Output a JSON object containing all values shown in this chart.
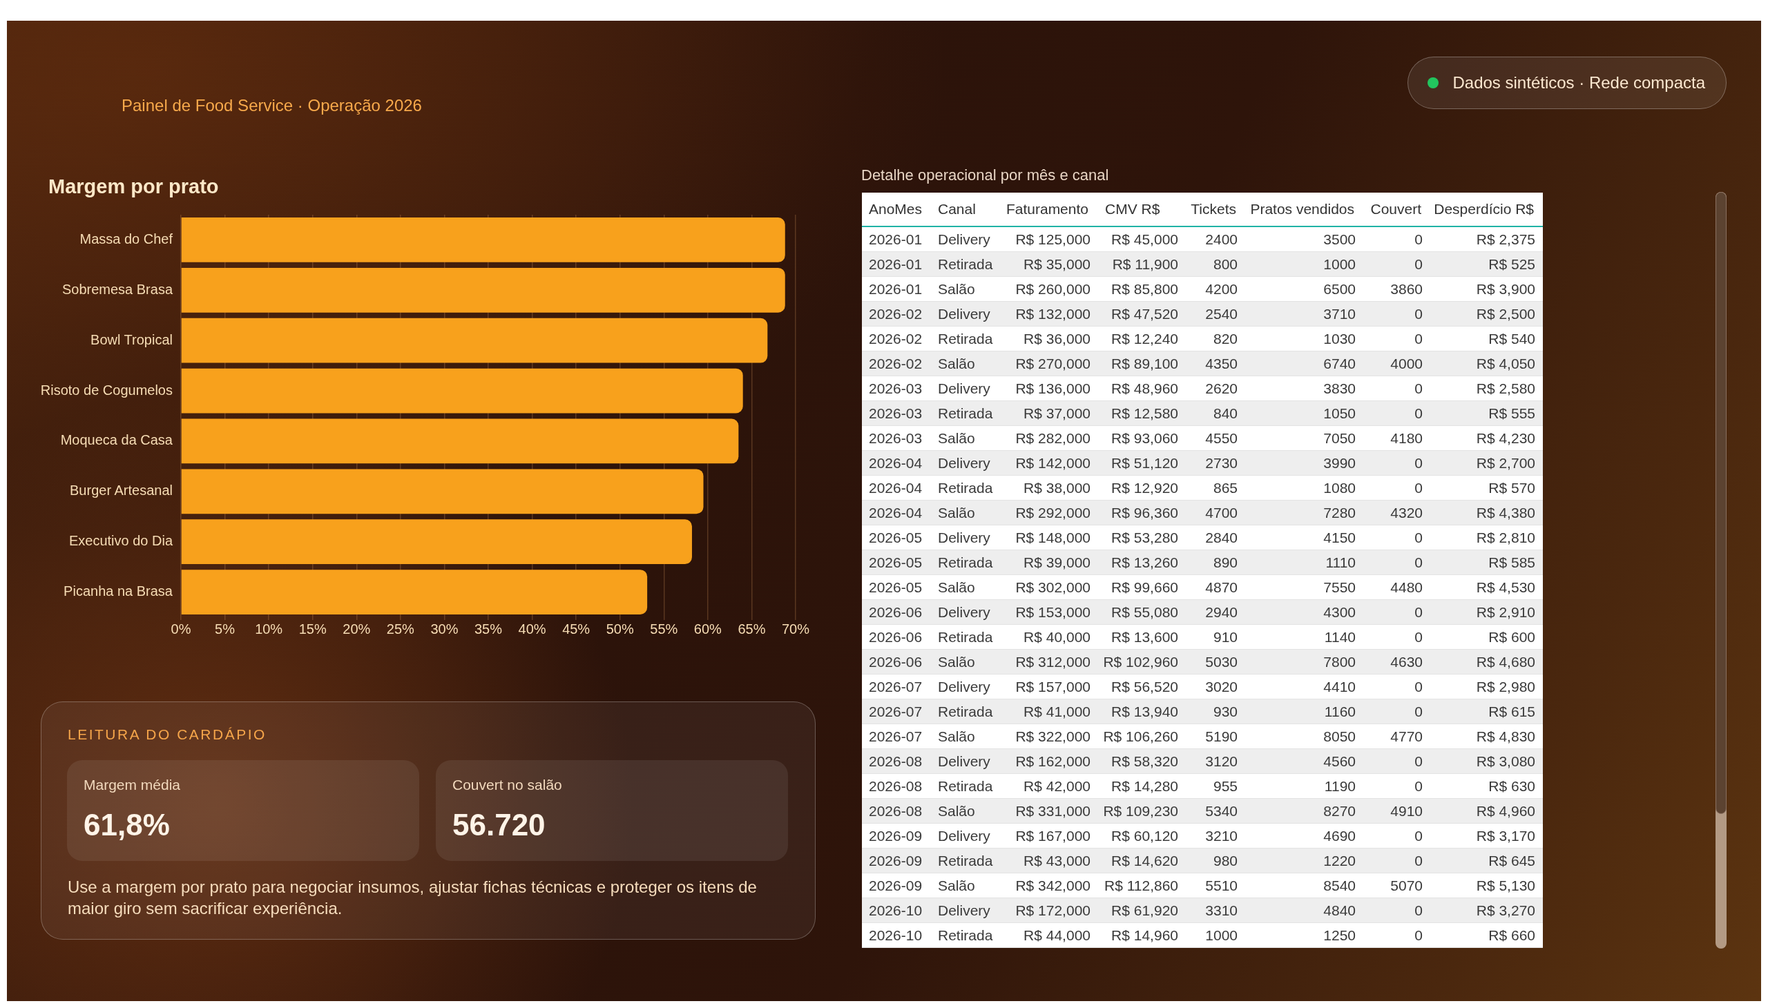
{
  "chart_data": [
    {
      "type": "other",
      "subtitle": "Painel de Food Service · Operação 2026",
      "annotations": [
        "Dados sintéticos · Rede compacta"
      ]
    },
    {
      "type": "bar",
      "orientation": "horizontal",
      "title": "Margem por prato",
      "categories": [
        "Massa do Chef",
        "Sobremesa Brasa",
        "Bowl Tropical",
        "Risoto de Cogumelos",
        "Moqueca da Casa",
        "Burger Artesanal",
        "Executivo do Dia",
        "Picanha na Brasa"
      ],
      "values": [
        68.8,
        68.8,
        66.8,
        64.0,
        63.5,
        59.5,
        58.2,
        53.1
      ],
      "color": "#f8a11c",
      "xlim": [
        0,
        70
      ],
      "xticks": [
        {
          "value": 0,
          "label": "0%"
        },
        {
          "value": 5,
          "label": "5%"
        },
        {
          "value": 10,
          "label": "10%"
        },
        {
          "value": 15,
          "label": "15%"
        },
        {
          "value": 20,
          "label": "20%"
        },
        {
          "value": 25,
          "label": "25%"
        },
        {
          "value": 30,
          "label": "30%"
        },
        {
          "value": 35,
          "label": "35%"
        },
        {
          "value": 40,
          "label": "40%"
        },
        {
          "value": 45,
          "label": "45%"
        },
        {
          "value": 50,
          "label": "50%"
        },
        {
          "value": 55,
          "label": "55%"
        },
        {
          "value": 60,
          "label": "60%"
        },
        {
          "value": 65,
          "label": "65%"
        },
        {
          "value": 70,
          "label": "70%"
        }
      ],
      "grid": "x"
    },
    {
      "type": "other",
      "title": "Detalhe operacional por mês e canal",
      "categories": [
        "AnoMes",
        "Canal",
        "Faturamento",
        "CMV R$",
        "Tickets",
        "Pratos vendidos",
        "Couvert",
        "Desperdício R$"
      ],
      "annotations": [
        "2026-01",
        "Delivery",
        "R$ 125,000",
        "R$ 45,000",
        "2400",
        "3500",
        "0",
        "R$ 2,375",
        "2026-01",
        "Retirada",
        "R$ 35,000",
        "R$ 11,900",
        "800",
        "1000",
        "0",
        "R$ 525",
        "2026-01",
        "Salão",
        "R$ 260,000",
        "R$ 85,800",
        "4200",
        "6500",
        "3860",
        "R$ 3,900",
        "2026-02",
        "Delivery",
        "R$ 132,000",
        "R$ 47,520",
        "2540",
        "3710",
        "0",
        "R$ 2,500",
        "2026-02",
        "Retirada",
        "R$ 36,000",
        "R$ 12,240",
        "820",
        "1030",
        "0",
        "R$ 540",
        "2026-02",
        "Salão",
        "R$ 270,000",
        "R$ 89,100",
        "4350",
        "6740",
        "4000",
        "R$ 4,050",
        "2026-03",
        "Delivery",
        "R$ 136,000",
        "R$ 48,960",
        "2620",
        "3830",
        "0",
        "R$ 2,580",
        "2026-03",
        "Retirada",
        "R$ 37,000",
        "R$ 12,580",
        "840",
        "1050",
        "0",
        "R$ 555",
        "2026-03",
        "Salão",
        "R$ 282,000",
        "R$ 93,060",
        "4550",
        "7050",
        "4180",
        "R$ 4,230",
        "2026-04",
        "Delivery",
        "R$ 142,000",
        "R$ 51,120",
        "2730",
        "3990",
        "0",
        "R$ 2,700",
        "2026-04",
        "Retirada",
        "R$ 38,000",
        "R$ 12,920",
        "865",
        "1080",
        "0",
        "R$ 570",
        "2026-04",
        "Salão",
        "R$ 292,000",
        "R$ 96,360",
        "4700",
        "7280",
        "4320",
        "R$ 4,380",
        "2026-05",
        "Delivery",
        "R$ 148,000",
        "R$ 53,280",
        "2840",
        "4150",
        "0",
        "R$ 2,810",
        "2026-05",
        "Retirada",
        "R$ 39,000",
        "R$ 13,260",
        "890",
        "1110",
        "0",
        "R$ 585",
        "2026-05",
        "Salão",
        "R$ 302,000",
        "R$ 99,660",
        "4870",
        "7550",
        "4480",
        "R$ 4,530",
        "2026-06",
        "Delivery",
        "R$ 153,000",
        "R$ 55,080",
        "2940",
        "4300",
        "0",
        "R$ 2,910",
        "2026-06",
        "Retirada",
        "R$ 40,000",
        "R$ 13,600",
        "910",
        "1140",
        "0",
        "R$ 600",
        "2026-06",
        "Salão",
        "R$ 312,000",
        "R$ 102,960",
        "5030",
        "7800",
        "4630",
        "R$ 4,680",
        "2026-07",
        "Delivery",
        "R$ 157,000",
        "R$ 56,520",
        "3020",
        "4410",
        "0",
        "R$ 2,980",
        "2026-07",
        "Retirada",
        "R$ 41,000",
        "R$ 13,940",
        "930",
        "1160",
        "0",
        "R$ 615",
        "2026-07",
        "Salão",
        "R$ 322,000",
        "R$ 106,260",
        "5190",
        "8050",
        "4770",
        "R$ 4,830",
        "2026-08",
        "Delivery",
        "R$ 162,000",
        "R$ 58,320",
        "3120",
        "4560",
        "0",
        "R$ 3,080",
        "2026-08",
        "Retirada",
        "R$ 42,000",
        "R$ 14,280",
        "955",
        "1190",
        "0",
        "R$ 630",
        "2026-08",
        "Salão",
        "R$ 331,000",
        "R$ 109,230",
        "5340",
        "8270",
        "4910",
        "R$ 4,960",
        "2026-09",
        "Delivery",
        "R$ 167,000",
        "R$ 60,120",
        "3210",
        "4690",
        "0",
        "R$ 3,170",
        "2026-09",
        "Retirada",
        "R$ 43,000",
        "R$ 14,620",
        "980",
        "1220",
        "0",
        "R$ 645",
        "2026-09",
        "Salão",
        "R$ 342,000",
        "R$ 112,860",
        "5510",
        "8540",
        "5070",
        "R$ 5,130",
        "2026-10",
        "Delivery",
        "R$ 172,000",
        "R$ 61,920",
        "3310",
        "4840",
        "0",
        "R$ 3,270",
        "2026-10",
        "Retirada",
        "R$ 44,000",
        "R$ 14,960",
        "1000",
        "1250",
        "0",
        "R$ 660"
      ]
    },
    {
      "type": "other",
      "title": "LEITURA DO CARDÁPIO",
      "annotations": [
        "Margem média",
        "61,8%",
        "Couvert no salão",
        "56.720",
        "Use a margem por prato para negociar insumos, ajustar fichas técnicas e proteger os itens de maior giro sem sacrificar experiência."
      ]
    }
  ]
}
